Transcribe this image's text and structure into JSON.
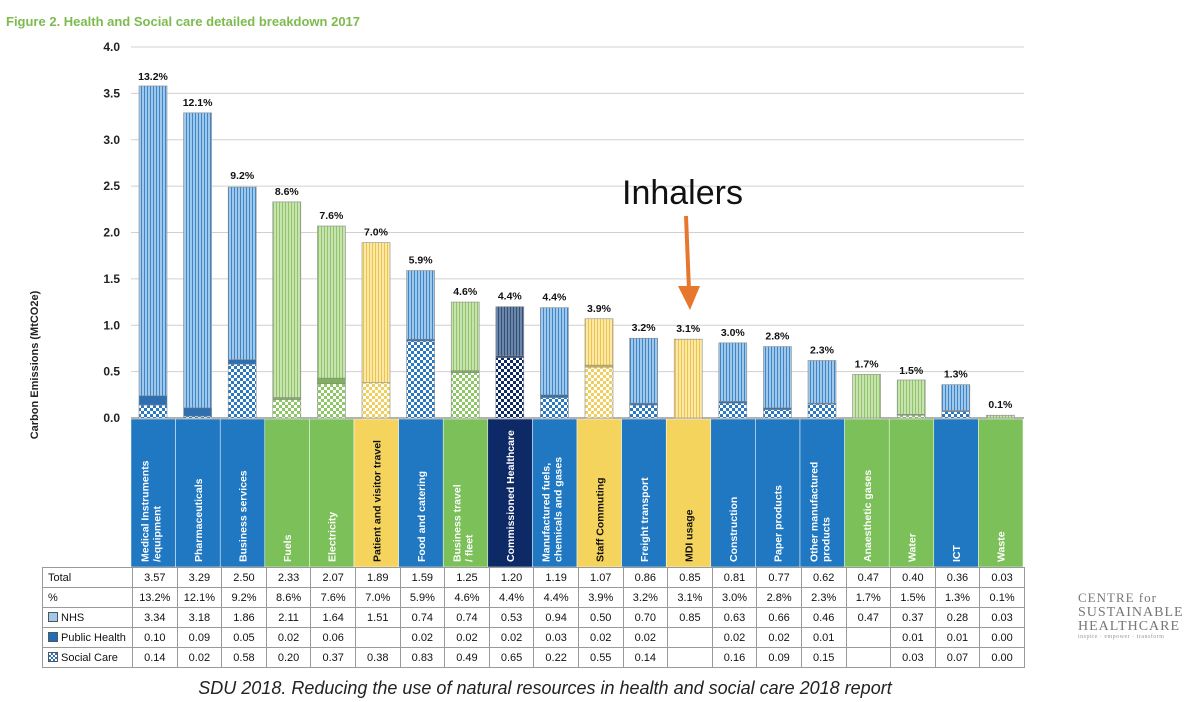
{
  "chart_data": {
    "type": "bar",
    "title": "Figure 2. Health and Social care detailed breakdown 2017",
    "ylabel": "Carbon Emissions (MtCO2e)",
    "ylim": [
      0,
      4.0
    ],
    "yticks": [
      "0.0",
      "0.5",
      "1.0",
      "1.5",
      "2.0",
      "2.5",
      "3.0",
      "3.5",
      "4.0"
    ],
    "grid": true,
    "categories": [
      "Medical Instruments /equipment",
      "Pharmaceuticals",
      "Business services",
      "Fuels",
      "Electricity",
      "Patient and visitor travel",
      "Food and catering",
      "Business travel / fleet",
      "Commissioned Healthcare",
      "Manufactured fuels, chemicals and gases",
      "Staff Commuting",
      "Freight transport",
      "MDI usage",
      "Construction",
      "Paper products",
      "Other manufactured products",
      "Anaesthetic gases",
      "Water",
      "ICT",
      "Waste"
    ],
    "category_colors": [
      "#1f78c1",
      "#1f78c1",
      "#1f78c1",
      "#7cc05a",
      "#7cc05a",
      "#f5d45e",
      "#1f78c1",
      "#7cc05a",
      "#0d2a66",
      "#1f78c1",
      "#f5d45e",
      "#1f78c1",
      "#f5d45e",
      "#1f78c1",
      "#1f78c1",
      "#1f78c1",
      "#7cc05a",
      "#7cc05a",
      "#1f78c1",
      "#7cc05a"
    ],
    "category_text_colors": [
      "#ffffff",
      "#ffffff",
      "#ffffff",
      "#ffffff",
      "#ffffff",
      "#111111",
      "#ffffff",
      "#ffffff",
      "#ffffff",
      "#ffffff",
      "#111111",
      "#ffffff",
      "#111111",
      "#ffffff",
      "#ffffff",
      "#ffffff",
      "#ffffff",
      "#ffffff",
      "#ffffff",
      "#ffffff"
    ],
    "percent_labels": [
      "13.2%",
      "12.1%",
      "9.2%",
      "8.6%",
      "7.6%",
      "7.0%",
      "5.9%",
      "4.6%",
      "4.4%",
      "4.4%",
      "3.9%",
      "3.2%",
      "3.1%",
      "3.0%",
      "2.8%",
      "2.3%",
      "1.7%",
      "1.5%",
      "1.3%",
      "0.1%"
    ],
    "series": [
      {
        "name": "Social Care",
        "values": [
          0.14,
          0.02,
          0.58,
          0.2,
          0.37,
          0.38,
          0.83,
          0.49,
          0.65,
          0.22,
          0.55,
          0.14,
          0,
          0.16,
          0.09,
          0.15,
          0,
          0.03,
          0.07,
          0.0
        ]
      },
      {
        "name": "Public Health",
        "values": [
          0.1,
          0.09,
          0.05,
          0.02,
          0.06,
          0,
          0.02,
          0.02,
          0.02,
          0.03,
          0.02,
          0.02,
          0,
          0.02,
          0.02,
          0.01,
          0,
          0.01,
          0.01,
          0.0
        ]
      },
      {
        "name": "NHS",
        "values": [
          3.34,
          3.18,
          1.86,
          2.11,
          1.64,
          1.51,
          0.74,
          0.74,
          0.53,
          0.94,
          0.5,
          0.7,
          0.85,
          0.63,
          0.66,
          0.46,
          0.47,
          0.37,
          0.28,
          0.03
        ]
      }
    ],
    "table": {
      "rows": [
        {
          "label": "Total",
          "swatch": "",
          "cells": [
            "3.57",
            "3.29",
            "2.50",
            "2.33",
            "2.07",
            "1.89",
            "1.59",
            "1.25",
            "1.20",
            "1.19",
            "1.07",
            "0.86",
            "0.85",
            "0.81",
            "0.77",
            "0.62",
            "0.47",
            "0.40",
            "0.36",
            "0.03"
          ]
        },
        {
          "label": "%",
          "swatch": "",
          "cells": [
            "13.2%",
            "12.1%",
            "9.2%",
            "8.6%",
            "7.6%",
            "7.0%",
            "5.9%",
            "4.6%",
            "4.4%",
            "4.4%",
            "3.9%",
            "3.2%",
            "3.1%",
            "3.0%",
            "2.8%",
            "2.3%",
            "1.7%",
            "1.5%",
            "1.3%",
            "0.1%"
          ]
        },
        {
          "label": "NHS",
          "swatch": "nhs",
          "cells": [
            "3.34",
            "3.18",
            "1.86",
            "2.11",
            "1.64",
            "1.51",
            "0.74",
            "0.74",
            "0.53",
            "0.94",
            "0.50",
            "0.70",
            "0.85",
            "0.63",
            "0.66",
            "0.46",
            "0.47",
            "0.37",
            "0.28",
            "0.03"
          ]
        },
        {
          "label": "Public Health",
          "swatch": "ph",
          "cells": [
            "0.10",
            "0.09",
            "0.05",
            "0.02",
            "0.06",
            "",
            "0.02",
            "0.02",
            "0.02",
            "0.03",
            "0.02",
            "0.02",
            "",
            "0.02",
            "0.02",
            "0.01",
            "",
            "0.01",
            "0.01",
            "0.00"
          ]
        },
        {
          "label": "Social Care",
          "swatch": "sc",
          "cells": [
            "0.14",
            "0.02",
            "0.58",
            "0.20",
            "0.37",
            "0.38",
            "0.83",
            "0.49",
            "0.65",
            "0.22",
            "0.55",
            "0.14",
            "",
            "0.16",
            "0.09",
            "0.15",
            "",
            "0.03",
            "0.07",
            "0.00"
          ]
        }
      ]
    }
  },
  "annotation": {
    "text": "Inhalers",
    "points_to": "MDI usage",
    "arrow_color": "#e8772e"
  },
  "source_caption": "SDU 2018. Reducing the use of natural resources in health and social care 2018 report",
  "logo": {
    "line1": "CENTRE for",
    "line2": "SUSTAINABLE",
    "line3": "HEALTHCARE",
    "tagline": "inspire · empower · transform"
  },
  "colors": {
    "grid": "#d0d0d0",
    "title": "#7dbb4f",
    "axis": "#666666"
  }
}
